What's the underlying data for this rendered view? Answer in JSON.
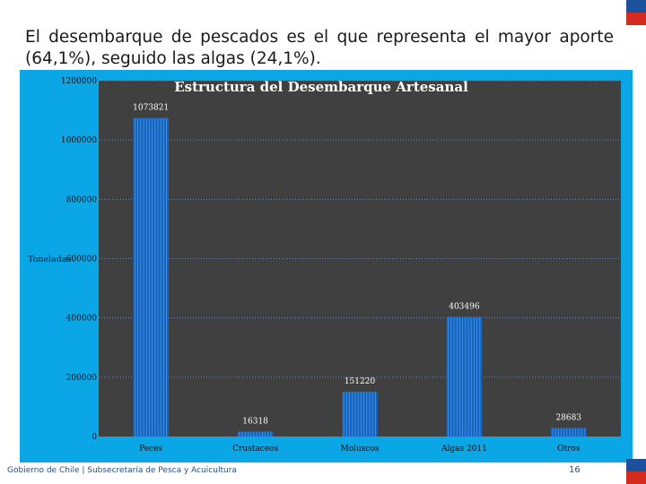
{
  "slide": {
    "text": "El desembarque de pescados es el que representa el mayor aporte (64,1%), seguido las algas (24,1%).",
    "footer": "Gobierno de Chile | Subsecretaría de Pesca y Acuicultura",
    "page_number": "16"
  },
  "colors": {
    "frame": "#0aa6e6",
    "plot_bg": "#404040",
    "bar": "#1565c0",
    "bar_stripe": "#4f9be8",
    "gridline": "#5c8bbf",
    "label_text": "#ffffff",
    "tick_text": "#111111"
  },
  "chart_data": {
    "type": "bar",
    "title": "Estructura del Desembarque Artesanal",
    "ylabel": "Toneladas",
    "xlabel": "",
    "categories": [
      "Peces",
      "Crustaceos",
      "Moluscos",
      "Algas 2011",
      "Otros"
    ],
    "values": [
      1073821,
      16318,
      151220,
      403496,
      28683
    ],
    "data_labels": [
      "1073821",
      "16318",
      "151220",
      "403496",
      "28683"
    ],
    "ylim": [
      0,
      1200000
    ],
    "yticks": [
      0,
      200000,
      400000,
      600000,
      800000,
      1000000,
      1200000
    ],
    "ytick_labels": [
      "0",
      "200000",
      "400000",
      "600000",
      "800000",
      "1000000",
      "1200000"
    ],
    "grid": true,
    "legend": "none"
  }
}
